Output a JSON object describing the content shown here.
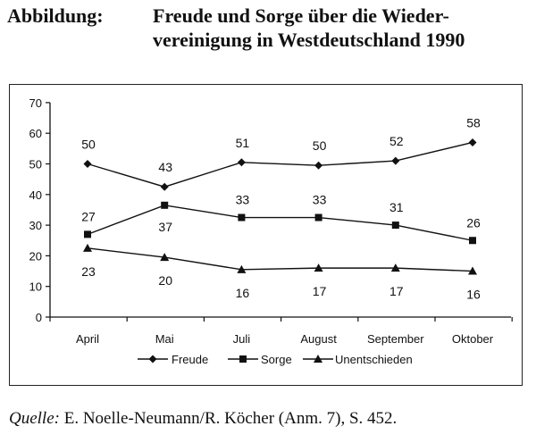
{
  "figure": {
    "title_label": "Abbildung:",
    "title_line1": "Freude und Sorge über die Wieder-",
    "title_line2": "vereinigung in Westdeutschland 1990",
    "source_label": "Quelle:",
    "source_text": " E. Noelle-Neumann/R. Köcher (Anm. 7), S. 452."
  },
  "chart_data": {
    "type": "line",
    "title": "",
    "xlabel": "",
    "ylabel": "",
    "categories": [
      "April",
      "Mai",
      "Juli",
      "August",
      "September",
      "Oktober"
    ],
    "ylim": [
      0,
      70
    ],
    "yticks": [
      0,
      10,
      20,
      30,
      40,
      50,
      60,
      70
    ],
    "grid": false,
    "legend_position": "bottom",
    "series": [
      {
        "name": "Freude",
        "marker": "diamond",
        "values": [
          50,
          43,
          51,
          50,
          52,
          58
        ],
        "plotted": [
          50,
          42.5,
          50.5,
          49.5,
          51,
          57
        ],
        "labels": [
          "50",
          "43",
          "51",
          "50",
          "52",
          "58"
        ],
        "label_position": "above"
      },
      {
        "name": "Sorge",
        "marker": "square",
        "values": [
          27,
          37,
          33,
          33,
          31,
          26
        ],
        "plotted": [
          27,
          36.5,
          32.5,
          32.5,
          30,
          25
        ],
        "labels": [
          "27",
          "37",
          "33",
          "33",
          "31",
          "26"
        ],
        "label_position": "mixed"
      },
      {
        "name": "Unentschieden",
        "marker": "triangle",
        "values": [
          23,
          20,
          16,
          17,
          17,
          16
        ],
        "plotted": [
          22.5,
          19.5,
          15.5,
          16,
          16,
          15
        ],
        "labels": [
          "23",
          "20",
          "16",
          "17",
          "17",
          "16"
        ],
        "label_position": "below"
      }
    ]
  }
}
